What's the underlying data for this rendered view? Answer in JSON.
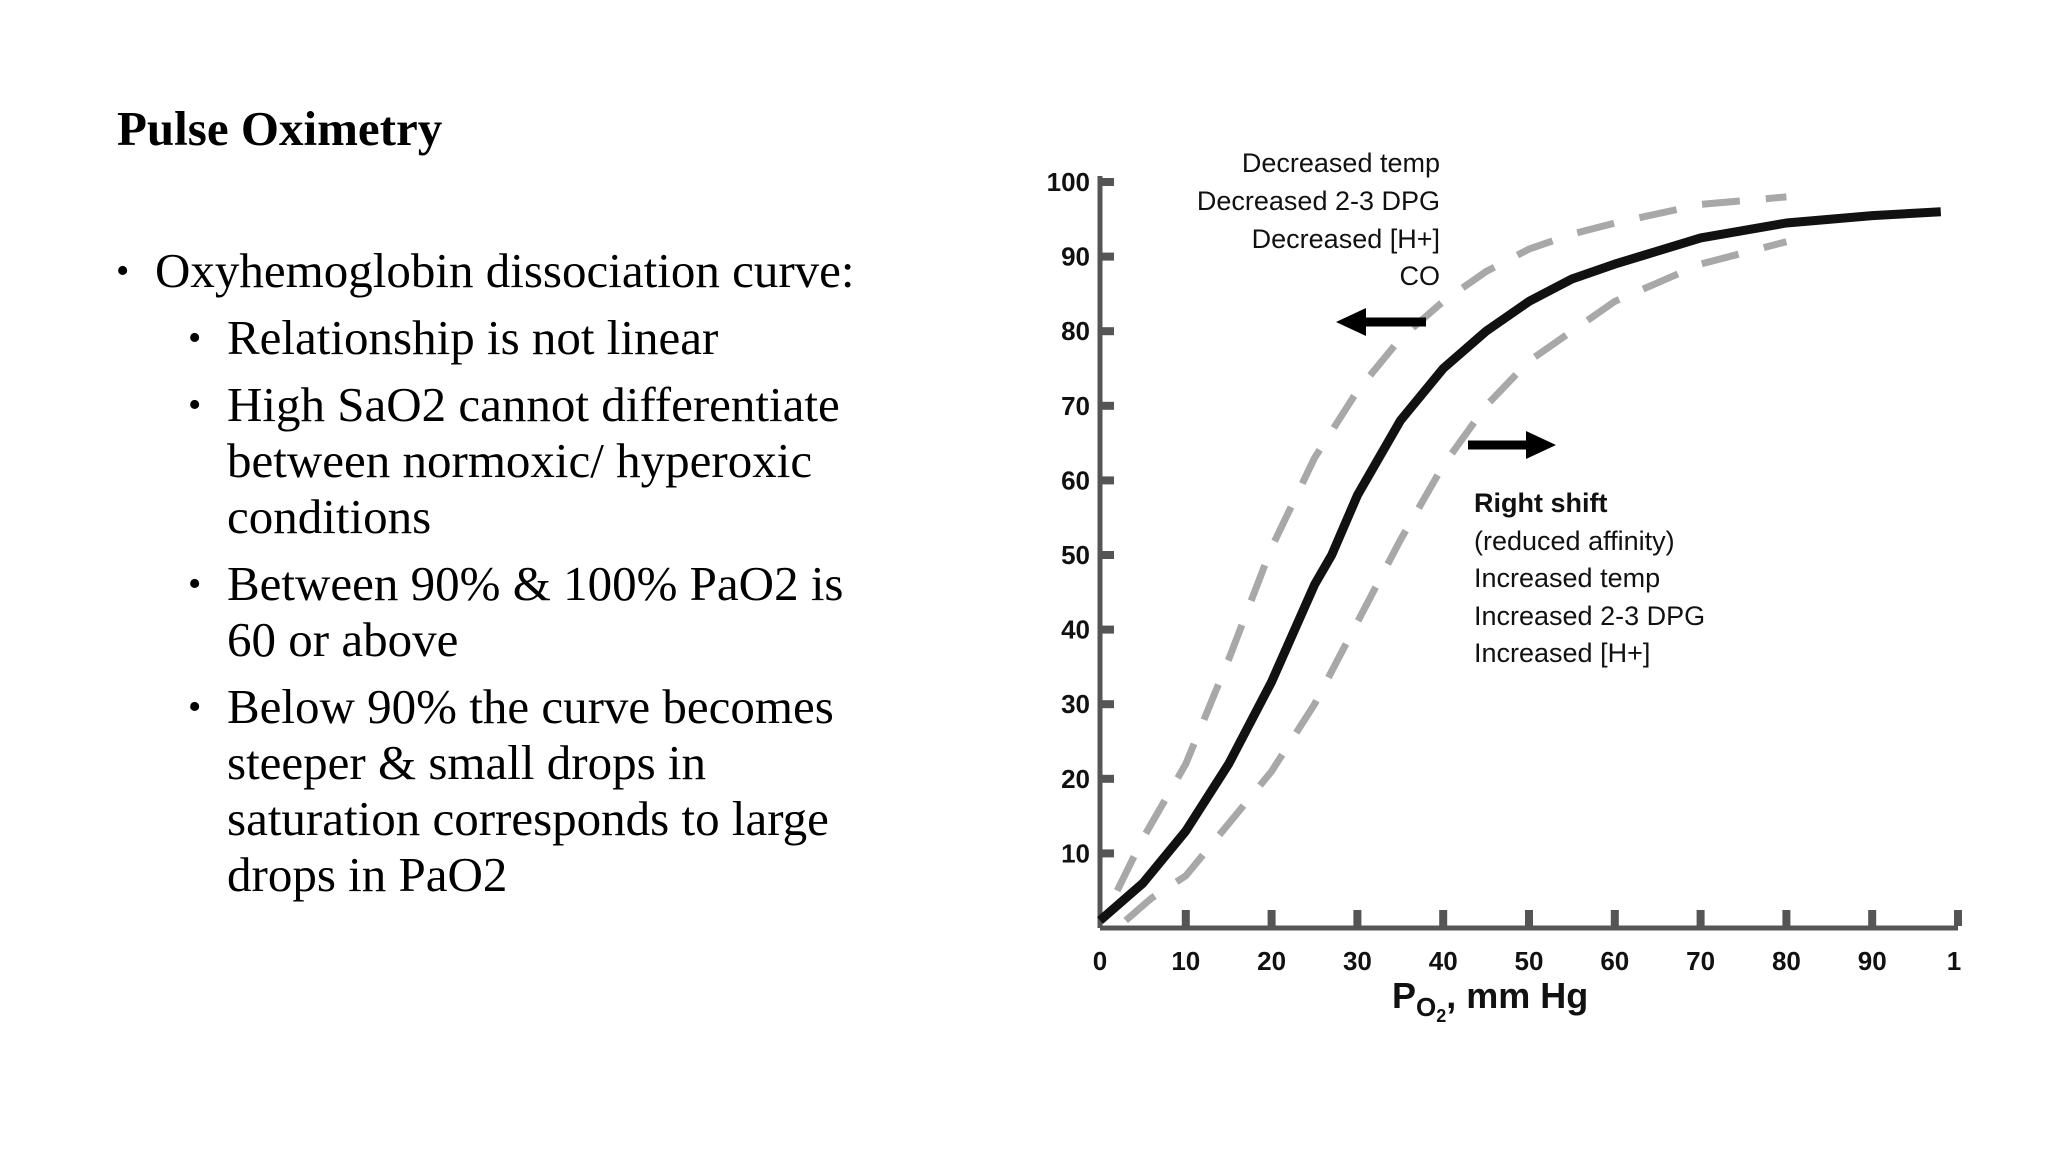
{
  "slide": {
    "title": "Pulse Oximetry",
    "bullet_main": "Oxyhemoglobin dissociation curve:",
    "sub_bullets": [
      "Relationship is not linear",
      "High SaO2 cannot differentiate between normoxic/ hyperoxic conditions",
      "Between 90% & 100% PaO2 is 60 or above",
      "Below 90% the curve becomes steeper & small drops in saturation corresponds to large drops in PaO2"
    ]
  },
  "chart_data": {
    "type": "line",
    "title": "",
    "xlabel_main": "P",
    "xlabel_sub": "O",
    "xlabel_subsub": "2",
    "xlabel_rest": ", mm Hg",
    "ylabel": "",
    "xlim": [
      0,
      100
    ],
    "ylim": [
      0,
      100
    ],
    "x_ticks": [
      "0",
      "10",
      "20",
      "30",
      "40",
      "50",
      "60",
      "70",
      "80",
      "90",
      "1"
    ],
    "y_ticks": [
      "10",
      "20",
      "30",
      "40",
      "50",
      "60",
      "70",
      "80",
      "90",
      "100"
    ],
    "grid": false,
    "colors": {
      "normal": "#111111",
      "shifted": "#a8a8a8",
      "axis": "#555555",
      "arrow": "#000000"
    },
    "series": [
      {
        "style": "solid",
        "x": [
          0,
          5,
          10,
          15,
          20,
          25,
          27,
          30,
          35,
          40,
          45,
          50,
          55,
          60,
          70,
          80,
          90,
          98
        ],
        "y": [
          1,
          6,
          13,
          22,
          33,
          46,
          50,
          58,
          68,
          75,
          80,
          84,
          87,
          89,
          92.5,
          94.5,
          95.5,
          96
        ]
      },
      {
        "style": "dashed",
        "x": [
          2,
          5,
          10,
          15,
          20,
          25,
          30,
          35,
          40,
          45,
          50,
          55,
          60,
          70,
          80
        ],
        "y": [
          5,
          12,
          22,
          36,
          51,
          63,
          72,
          79,
          84,
          88,
          91,
          93,
          94.5,
          97,
          98
        ]
      },
      {
        "style": "dashed",
        "x": [
          3,
          6,
          10,
          15,
          20,
          25,
          30,
          35,
          40,
          45,
          50,
          55,
          60,
          70,
          80
        ],
        "y": [
          1,
          4,
          7,
          14,
          21,
          30,
          41,
          52,
          62,
          70,
          76,
          80,
          84,
          89,
          92
        ]
      }
    ],
    "left_shift_labels": [
      "Decreased temp",
      "Decreased 2-3 DPG",
      "Decreased [H+]",
      "CO"
    ],
    "right_shift_labels": [
      "Right shift",
      "(reduced affinity)",
      "Increased temp",
      "Increased 2-3 DPG",
      "Increased [H+]"
    ]
  }
}
